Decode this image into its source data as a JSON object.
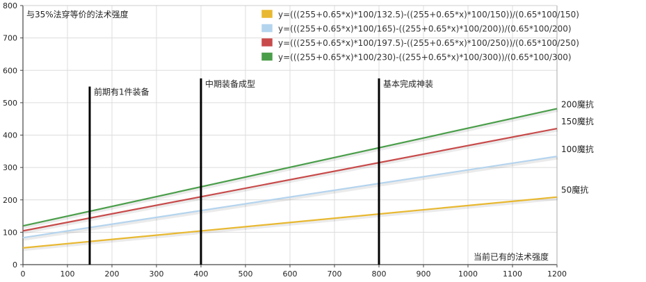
{
  "chart_data": {
    "type": "line",
    "title": "与35%法穿等价的法术强度",
    "xlabel": "当前已有的法术强度",
    "ylabel": "",
    "xlim": [
      0,
      1200
    ],
    "ylim": [
      0,
      800
    ],
    "x_ticks": [
      0,
      100,
      200,
      300,
      400,
      500,
      600,
      700,
      800,
      900,
      1000,
      1100,
      1200
    ],
    "y_ticks": [
      0,
      100,
      200,
      300,
      400,
      500,
      600,
      700,
      800
    ],
    "grid": true,
    "legend_position": "top-right",
    "x": [
      0,
      1200
    ],
    "series": [
      {
        "name": "y=(((255+0.65*x)*100/132.5)-((255+0.65*x)*100/150))/(0.65*100/150)",
        "color": "#e8b830",
        "values": [
          51.8,
          208.6
        ],
        "end_label": "50魔抗"
      },
      {
        "name": "y=(((255+0.65*x)*100/165)-((255+0.65*x)*100/200))/(0.65*100/200)",
        "color": "#b4d4ee",
        "values": [
          83.2,
          334.3
        ],
        "end_label": "100魔抗"
      },
      {
        "name": "y=(((255+0.65*x)*100/197.5)-((255+0.65*x)*100/250))/(0.65*100/250)",
        "color": "#c84a4a",
        "values": [
          104.3,
          420.2
        ],
        "end_label": "150魔抗"
      },
      {
        "name": "y=(((255+0.65*x)*100/230)-((255+0.65*x)*100/300))/(0.65*100/300)",
        "color": "#4a9e4a",
        "values": [
          119.6,
          481.6
        ],
        "end_label": "200魔抗"
      }
    ],
    "annotations": [
      {
        "x": 150,
        "y_top": 550,
        "text": "前期有1件装备"
      },
      {
        "x": 400,
        "y_top": 575,
        "text": "中期装备成型"
      },
      {
        "x": 800,
        "y_top": 575,
        "text": "基本完成神装"
      }
    ]
  }
}
